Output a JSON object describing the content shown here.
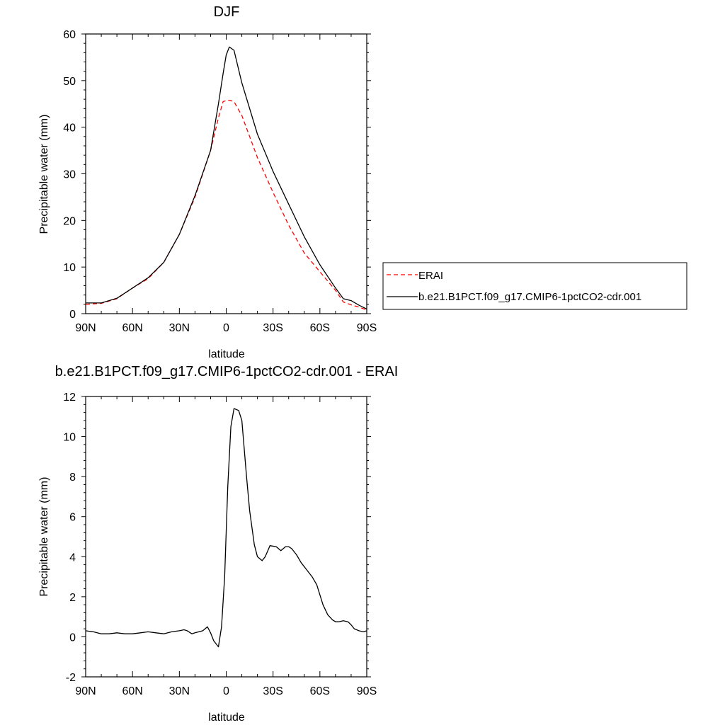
{
  "chart_data": [
    {
      "type": "line",
      "title": "DJF",
      "xlabel": "latitude",
      "ylabel": "Precipitable water (mm)",
      "xlim": [
        90,
        -90
      ],
      "ylim": [
        0,
        60
      ],
      "x_ticks": [
        {
          "value": 90,
          "label": "90N"
        },
        {
          "value": 60,
          "label": "60N"
        },
        {
          "value": 30,
          "label": "30N"
        },
        {
          "value": 0,
          "label": "0"
        },
        {
          "value": -30,
          "label": "30S"
        },
        {
          "value": -60,
          "label": "60S"
        },
        {
          "value": -90,
          "label": "90S"
        }
      ],
      "y_ticks": [
        0,
        10,
        20,
        30,
        40,
        50,
        60
      ],
      "legend_position": "right",
      "series": [
        {
          "name": "ERAI",
          "color": "#ff0000",
          "dash": "dashed",
          "x": [
            90,
            80,
            70,
            60,
            50,
            40,
            30,
            20,
            10,
            5,
            2,
            0,
            -2,
            -5,
            -10,
            -20,
            -30,
            -40,
            -50,
            -60,
            -70,
            -75,
            -80,
            -85,
            -90
          ],
          "y": [
            2.0,
            2.2,
            3.2,
            5.5,
            7.5,
            11.0,
            17.0,
            25.0,
            35.0,
            42.0,
            45.5,
            45.7,
            45.8,
            45.5,
            42.5,
            33.5,
            26.0,
            19.0,
            13.0,
            9.0,
            5.0,
            2.5,
            1.9,
            1.4,
            0.8
          ]
        },
        {
          "name": "b.e21.B1PCT.f09_g17.CMIP6-1pctCO2-cdr.001",
          "color": "#000000",
          "dash": "solid",
          "x": [
            90,
            80,
            70,
            60,
            50,
            40,
            30,
            20,
            10,
            5,
            2,
            0,
            -2,
            -5,
            -10,
            -20,
            -30,
            -40,
            -50,
            -60,
            -70,
            -75,
            -80,
            -85,
            -90
          ],
          "y": [
            2.3,
            2.3,
            3.3,
            5.5,
            7.7,
            11.0,
            17.0,
            25.3,
            35.0,
            45.0,
            51.5,
            55.5,
            57.2,
            56.5,
            49.5,
            38.5,
            30.5,
            23.5,
            16.5,
            10.5,
            5.5,
            3.2,
            2.8,
            1.8,
            1.0
          ]
        }
      ]
    },
    {
      "type": "line",
      "title": "b.e21.B1PCT.f09_g17.CMIP6-1pctCO2-cdr.001 - ERAI",
      "xlabel": "latitude",
      "ylabel": "Precipitable water (mm)",
      "xlim": [
        90,
        -90
      ],
      "ylim": [
        -2,
        12
      ],
      "x_ticks": [
        {
          "value": 90,
          "label": "90N"
        },
        {
          "value": 60,
          "label": "60N"
        },
        {
          "value": 30,
          "label": "30N"
        },
        {
          "value": 0,
          "label": "0"
        },
        {
          "value": -30,
          "label": "30S"
        },
        {
          "value": -60,
          "label": "60S"
        },
        {
          "value": -90,
          "label": "90S"
        }
      ],
      "y_ticks": [
        -2,
        0,
        2,
        4,
        6,
        8,
        10,
        12
      ],
      "series": [
        {
          "color": "#000000",
          "dash": "solid",
          "x": [
            90,
            85,
            80,
            75,
            70,
            65,
            60,
            55,
            50,
            45,
            40,
            35,
            30,
            27,
            25,
            22,
            20,
            15,
            12,
            10,
            8,
            5,
            3,
            1,
            -1,
            -3,
            -5,
            -8,
            -10,
            -13,
            -15,
            -18,
            -20,
            -23,
            -25,
            -28,
            -32,
            -35,
            -38,
            -40,
            -42,
            -45,
            -48,
            -52,
            -55,
            -58,
            -62,
            -65,
            -68,
            -70,
            -72,
            -75,
            -78,
            -80,
            -82,
            -85,
            -88,
            -90
          ],
          "y": [
            0.3,
            0.25,
            0.15,
            0.15,
            0.2,
            0.15,
            0.15,
            0.2,
            0.25,
            0.2,
            0.15,
            0.25,
            0.3,
            0.35,
            0.3,
            0.15,
            0.2,
            0.3,
            0.5,
            0.2,
            -0.2,
            -0.5,
            0.5,
            3.0,
            7.5,
            10.5,
            11.4,
            11.3,
            10.8,
            8.0,
            6.3,
            4.6,
            4.0,
            3.8,
            4.0,
            4.55,
            4.5,
            4.3,
            4.5,
            4.5,
            4.4,
            4.1,
            3.7,
            3.3,
            3.0,
            2.6,
            1.6,
            1.1,
            0.85,
            0.75,
            0.75,
            0.8,
            0.75,
            0.6,
            0.4,
            0.3,
            0.25,
            0.3
          ]
        }
      ]
    }
  ]
}
